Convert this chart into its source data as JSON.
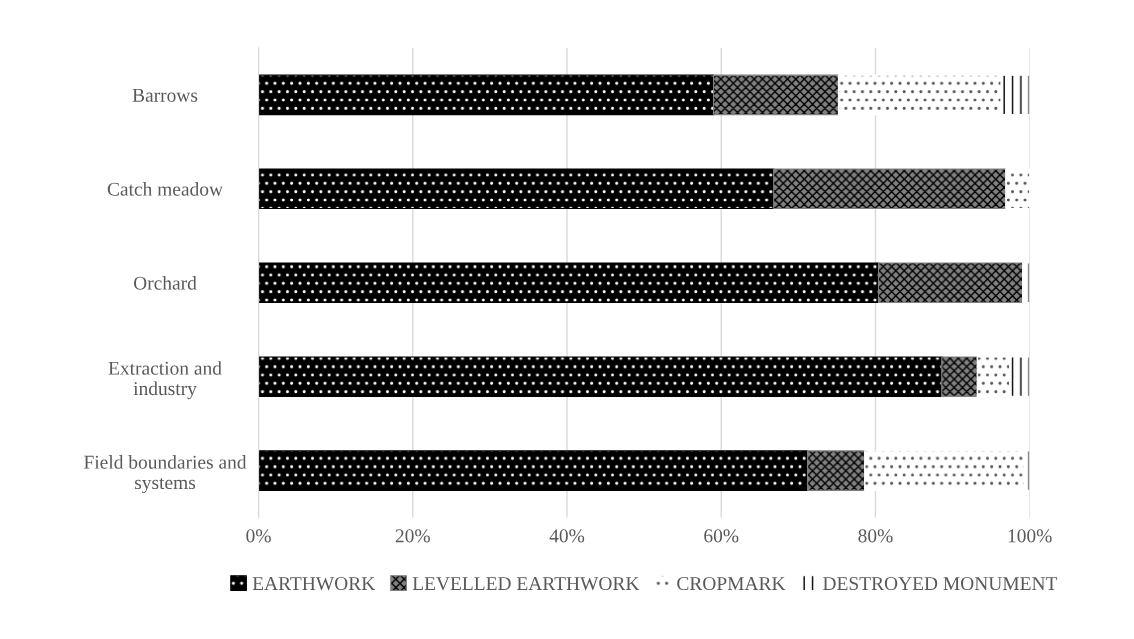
{
  "chart_data": {
    "type": "bar",
    "orientation": "horizontal",
    "stacked": true,
    "categories": [
      "Barrows",
      "Catch meadow",
      "Orchard",
      "Extraction and\nindustry",
      "Field boundaries and\nsystems"
    ],
    "series": [
      {
        "name": "EARTHWORK",
        "color": "#000000",
        "values": [
          59.0,
          66.8,
          80.4,
          88.6,
          71.2
        ]
      },
      {
        "name": "LEVELLED EARTHWORK",
        "color": "#808080",
        "values": [
          16.2,
          30.1,
          18.7,
          4.6,
          7.4
        ]
      },
      {
        "name": "CROPMARK",
        "color": "#ffffff",
        "values": [
          21.1,
          3.1,
          0,
          4.2,
          20.7
        ]
      },
      {
        "name": "DESTROYED MONUMENT",
        "color": "#ffffff",
        "values": [
          3.7,
          0,
          0.9,
          2.6,
          0.7
        ]
      }
    ],
    "xlim": [
      0,
      100
    ],
    "xticks": [
      {
        "value": 0,
        "label": "0%"
      },
      {
        "value": 20,
        "label": "20%"
      },
      {
        "value": 40,
        "label": "40%"
      },
      {
        "value": 60,
        "label": "60%"
      },
      {
        "value": 80,
        "label": "80%"
      },
      {
        "value": 100,
        "label": "100%"
      }
    ],
    "grid": "x",
    "legend": "bottom"
  }
}
